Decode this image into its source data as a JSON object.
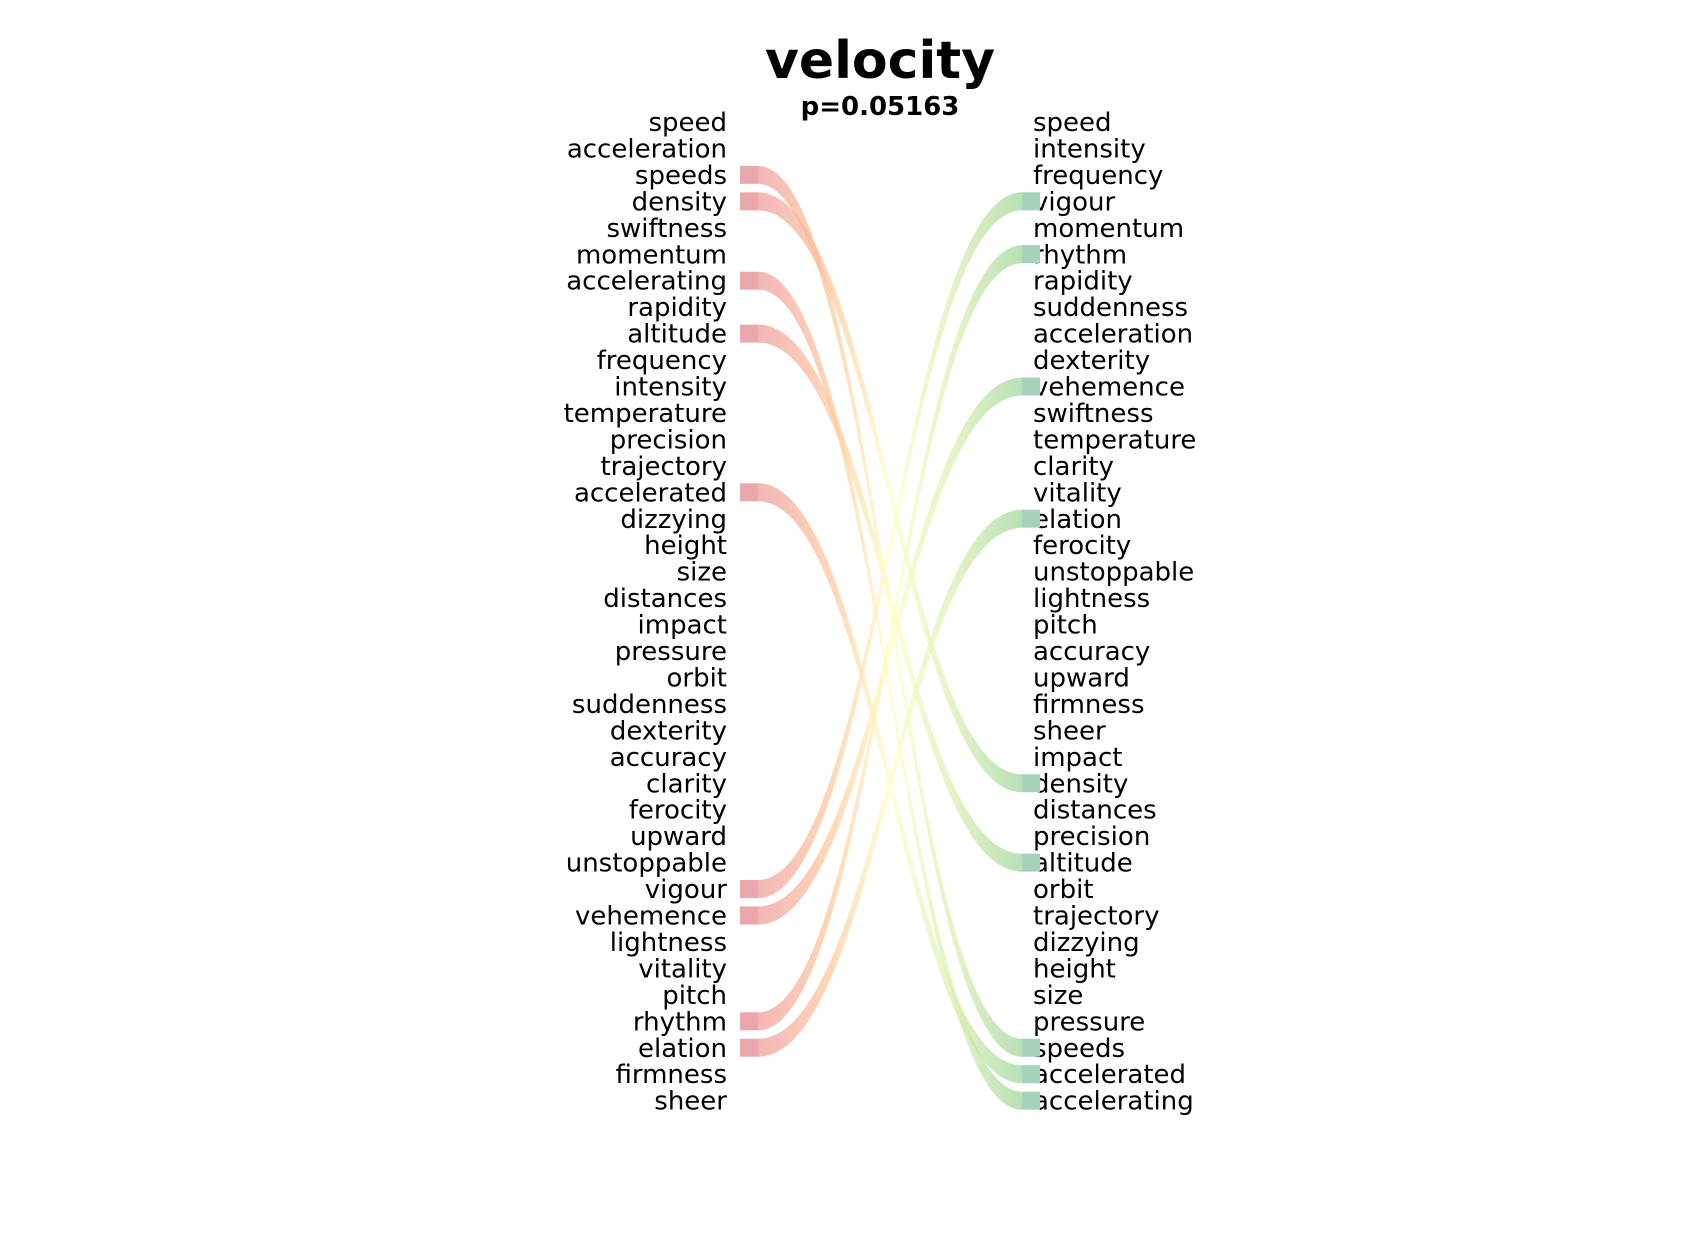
{
  "chart_data": {
    "type": "bump",
    "title": "velocity",
    "subtitle": "p=0.05163",
    "left_ranking": [
      "speed",
      "acceleration",
      "speeds",
      "density",
      "swiftness",
      "momentum",
      "accelerating",
      "rapidity",
      "altitude",
      "frequency",
      "intensity",
      "temperature",
      "precision",
      "trajectory",
      "accelerated",
      "dizzying",
      "height",
      "size",
      "distances",
      "impact",
      "pressure",
      "orbit",
      "suddenness",
      "dexterity",
      "accuracy",
      "clarity",
      "ferocity",
      "upward",
      "unstoppable",
      "vigour",
      "vehemence",
      "lightness",
      "vitality",
      "pitch",
      "rhythm",
      "elation",
      "firmness",
      "sheer"
    ],
    "right_ranking": [
      "speed",
      "intensity",
      "frequency",
      "vigour",
      "momentum",
      "rhythm",
      "rapidity",
      "suddenness",
      "acceleration",
      "dexterity",
      "vehemence",
      "swiftness",
      "temperature",
      "clarity",
      "vitality",
      "elation",
      "ferocity",
      "unstoppable",
      "lightness",
      "pitch",
      "accuracy",
      "upward",
      "firmness",
      "sheer",
      "impact",
      "density",
      "distances",
      "precision",
      "altitude",
      "orbit",
      "trajectory",
      "dizzying",
      "height",
      "size",
      "pressure",
      "speeds",
      "accelerated",
      "accelerating"
    ],
    "highlighted_links": [
      {
        "word": "speeds",
        "from_rank": 3,
        "to_rank": 36
      },
      {
        "word": "density",
        "from_rank": 4,
        "to_rank": 26
      },
      {
        "word": "accelerating",
        "from_rank": 7,
        "to_rank": 38
      },
      {
        "word": "altitude",
        "from_rank": 9,
        "to_rank": 29
      },
      {
        "word": "accelerated",
        "from_rank": 15,
        "to_rank": 37
      },
      {
        "word": "vigour",
        "from_rank": 30,
        "to_rank": 4
      },
      {
        "word": "vehemence",
        "from_rank": 31,
        "to_rank": 11
      },
      {
        "word": "rhythm",
        "from_rank": 35,
        "to_rank": 6
      },
      {
        "word": "elation",
        "from_rank": 36,
        "to_rank": 16
      }
    ],
    "colors": {
      "left_marker": "#e8a8ac",
      "right_marker": "#a6d2bb",
      "gradient": [
        "#ef9a9a",
        "#ffcc99",
        "#ffffcc",
        "#d9f0b0",
        "#a6d9a0"
      ]
    }
  }
}
